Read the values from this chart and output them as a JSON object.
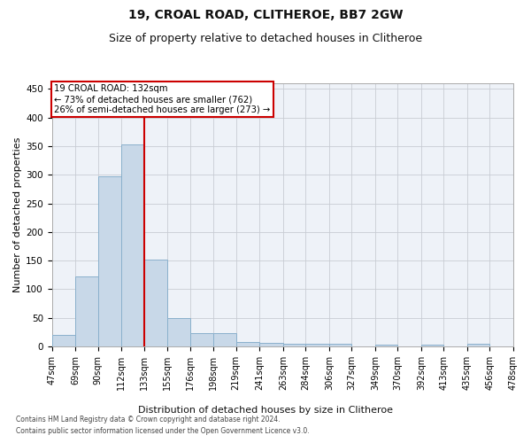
{
  "title_line1": "19, CROAL ROAD, CLITHEROE, BB7 2GW",
  "title_line2": "Size of property relative to detached houses in Clitheroe",
  "xlabel": "Distribution of detached houses by size in Clitheroe",
  "ylabel": "Number of detached properties",
  "footnote1": "Contains HM Land Registry data © Crown copyright and database right 2024.",
  "footnote2": "Contains public sector information licensed under the Open Government Licence v3.0.",
  "bar_color": "#c8d8e8",
  "bar_edgecolor": "#8ab0cc",
  "gridcolor": "#c8ccd4",
  "vline_color": "#cc0000",
  "annotation_box_edgecolor": "#cc0000",
  "annotation_bg": "#ffffff",
  "annotation_text_line1": "19 CROAL ROAD: 132sqm",
  "annotation_text_line2": "← 73% of detached houses are smaller (762)",
  "annotation_text_line3": "26% of semi-detached houses are larger (273) →",
  "bin_edges": [
    47,
    69,
    90,
    112,
    133,
    155,
    176,
    198,
    219,
    241,
    263,
    284,
    306,
    327,
    349,
    370,
    392,
    413,
    435,
    456,
    478
  ],
  "bin_labels": [
    "47sqm",
    "69sqm",
    "90sqm",
    "112sqm",
    "133sqm",
    "155sqm",
    "176sqm",
    "198sqm",
    "219sqm",
    "241sqm",
    "263sqm",
    "284sqm",
    "306sqm",
    "327sqm",
    "349sqm",
    "370sqm",
    "392sqm",
    "413sqm",
    "435sqm",
    "456sqm",
    "478sqm"
  ],
  "bar_heights": [
    20,
    122,
    298,
    353,
    151,
    49,
    23,
    23,
    8,
    6,
    4,
    4,
    5,
    0,
    3,
    0,
    3,
    0,
    4,
    0,
    4
  ],
  "ylim": [
    0,
    460
  ],
  "yticks": [
    0,
    50,
    100,
    150,
    200,
    250,
    300,
    350,
    400,
    450
  ],
  "vline_x": 133,
  "bg_color": "#ffffff",
  "plot_bg_color": "#eef2f8",
  "title1_fontsize": 10,
  "title2_fontsize": 9,
  "xlabel_fontsize": 8,
  "ylabel_fontsize": 8,
  "tick_fontsize": 7,
  "footnote_fontsize": 5.5
}
